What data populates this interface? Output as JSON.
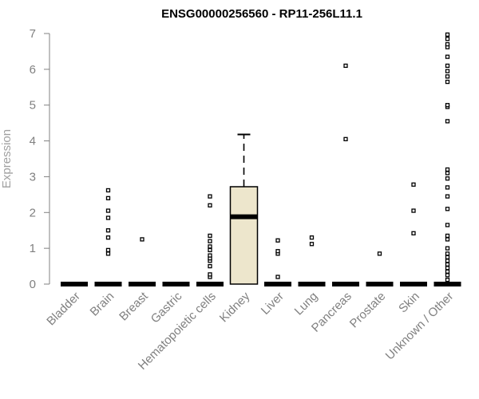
{
  "chart_data": {
    "type": "box",
    "title": "ENSG00000256560 - RP11-256L11.1",
    "xlabel": "",
    "ylabel": "Expression",
    "ylim": [
      0,
      7
    ],
    "yticks": [
      "0",
      "1",
      "2",
      "3",
      "4",
      "5",
      "6",
      "7"
    ],
    "grid": false,
    "categories": [
      "Bladder",
      "Brain",
      "Breast",
      "Gastric",
      "Hematopoietic cells",
      "Kidney",
      "Liver",
      "Lung",
      "Pancreas",
      "Prostate",
      "Skin",
      "Unknown / Other"
    ],
    "box_fill": "#ede6cc",
    "boxes": [
      {
        "category": "Bladder",
        "q1": 0,
        "median": 0,
        "q3": 0,
        "whisker_low": 0,
        "whisker_high": 0,
        "outliers": []
      },
      {
        "category": "Brain",
        "q1": 0,
        "median": 0,
        "q3": 0,
        "whisker_low": 0,
        "whisker_high": 0,
        "outliers": [
          0.85,
          0.95,
          1.3,
          1.5,
          1.85,
          2.05,
          2.4,
          2.62
        ]
      },
      {
        "category": "Breast",
        "q1": 0,
        "median": 0,
        "q3": 0,
        "whisker_low": 0,
        "whisker_high": 0,
        "outliers": [
          1.25
        ]
      },
      {
        "category": "Gastric",
        "q1": 0,
        "median": 0,
        "q3": 0,
        "whisker_low": 0,
        "whisker_high": 0,
        "outliers": []
      },
      {
        "category": "Hematopoietic cells",
        "q1": 0,
        "median": 0,
        "q3": 0,
        "whisker_low": 0,
        "whisker_high": 0,
        "outliers": [
          0.2,
          0.27,
          0.5,
          0.65,
          0.72,
          0.8,
          0.95,
          1.05,
          1.2,
          1.35,
          2.2,
          2.45
        ]
      },
      {
        "category": "Kidney",
        "q1": 0,
        "median": 1.88,
        "q3": 2.72,
        "whisker_low": 0,
        "whisker_high": 4.18,
        "outliers": []
      },
      {
        "category": "Liver",
        "q1": 0,
        "median": 0,
        "q3": 0,
        "whisker_low": 0,
        "whisker_high": 0,
        "outliers": [
          0.2,
          0.85,
          0.92,
          1.22
        ]
      },
      {
        "category": "Lung",
        "q1": 0,
        "median": 0,
        "q3": 0,
        "whisker_low": 0,
        "whisker_high": 0,
        "outliers": [
          1.12,
          1.3
        ]
      },
      {
        "category": "Pancreas",
        "q1": 0,
        "median": 0,
        "q3": 0,
        "whisker_low": 0,
        "whisker_high": 0,
        "outliers": [
          4.05,
          6.1
        ]
      },
      {
        "category": "Prostate",
        "q1": 0,
        "median": 0,
        "q3": 0,
        "whisker_low": 0,
        "whisker_high": 0,
        "outliers": [
          0.85
        ]
      },
      {
        "category": "Skin",
        "q1": 0,
        "median": 0,
        "q3": 0,
        "whisker_low": 0,
        "whisker_high": 0,
        "outliers": [
          1.42,
          2.05,
          2.78
        ]
      },
      {
        "category": "Unknown / Other",
        "q1": 0,
        "median": 0,
        "q3": 0,
        "whisker_low": 0,
        "whisker_high": 0,
        "outliers": [
          0.12,
          0.25,
          0.35,
          0.45,
          0.55,
          0.65,
          0.75,
          0.85,
          1.0,
          1.25,
          1.35,
          1.65,
          2.1,
          2.45,
          2.7,
          2.95,
          3.1,
          3.2,
          4.55,
          4.95,
          5.0,
          5.65,
          5.8,
          5.95,
          6.1,
          6.35,
          6.62,
          6.7,
          6.85,
          6.97
        ]
      }
    ]
  }
}
